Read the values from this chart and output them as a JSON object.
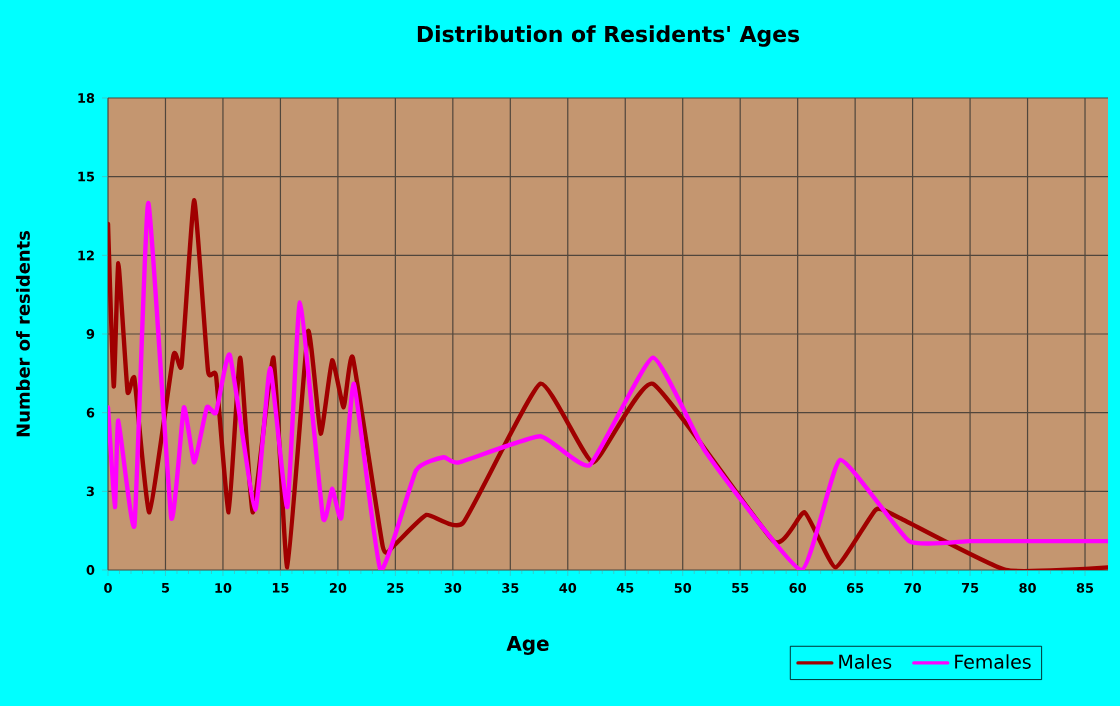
{
  "chart_data": {
    "type": "line",
    "title": "Distribution of Residents' Ages",
    "xlabel": "Age",
    "ylabel": "Number of residents",
    "series": [
      {
        "name": "Males",
        "color": "#a00000",
        "x": [
          0,
          0.5,
          0.9,
          1.7,
          2.3,
          3.6,
          5.7,
          6.4,
          7.5,
          8.7,
          9.4,
          10.5,
          11.5,
          12.6,
          14.4,
          15.6,
          17.4,
          18.5,
          19.5,
          20.5,
          21.3,
          23.9,
          24.8,
          27.7,
          30.9,
          37.6,
          42.2,
          47.4,
          57.9,
          60.6,
          63.3,
          66.8,
          68.8,
          78.1,
          87
        ],
        "values": [
          13.2,
          7,
          11.7,
          6.8,
          7.3,
          2.2,
          8.2,
          7.8,
          14.1,
          7.6,
          7.4,
          2.2,
          8.1,
          2.2,
          8.1,
          0.1,
          9.1,
          5.2,
          8,
          6.2,
          8.1,
          0.9,
          0.9,
          2.1,
          1.8,
          7.1,
          4.1,
          7.1,
          1.1,
          2.2,
          0.1,
          2.3,
          2,
          0,
          0.1
        ]
      },
      {
        "name": "Females",
        "color": "#ff00ff",
        "x": [
          0,
          0.6,
          0.9,
          2.3,
          3.5,
          5.5,
          6.6,
          7.5,
          8.6,
          9.4,
          10.6,
          12.8,
          14.1,
          15.6,
          16.7,
          18.7,
          19.5,
          20.3,
          21.4,
          23.7,
          26.8,
          29.2,
          30.5,
          37.6,
          41.9,
          47.4,
          52,
          60.3,
          63.7,
          69.7,
          75,
          80,
          87
        ],
        "values": [
          6.2,
          2.4,
          5.7,
          1.7,
          14,
          2,
          6.2,
          4.1,
          6.2,
          6,
          8.2,
          2.3,
          7.7,
          2.4,
          10.2,
          2,
          3.1,
          2,
          7.1,
          0,
          3.8,
          4.3,
          4.1,
          5.1,
          4,
          8.1,
          4.5,
          0,
          4.2,
          1.1,
          1.1,
          1.1,
          1.1
        ]
      }
    ],
    "xlim": [
      0,
      87
    ],
    "ylim": [
      0,
      18
    ],
    "xticks": [
      0,
      5,
      10,
      15,
      20,
      25,
      30,
      35,
      40,
      45,
      50,
      55,
      60,
      65,
      70,
      75,
      80,
      85
    ],
    "yticks": [
      0,
      3,
      6,
      9,
      12,
      15,
      18
    ],
    "grid": true,
    "legend": "bottom right",
    "line_style": "solid"
  }
}
